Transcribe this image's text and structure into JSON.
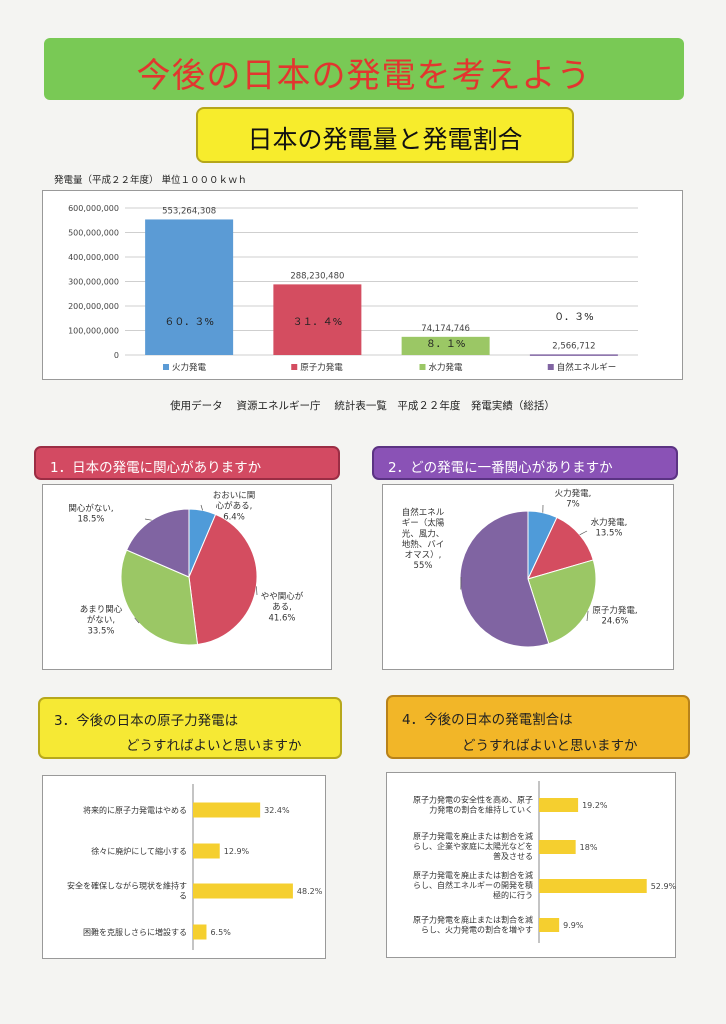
{
  "poster": {
    "title": "今後の日本の発電を考えよう",
    "subtitle": "日本の発電量と発電割合"
  },
  "bar_section": {
    "unit_label": "発電量（平成２２年度） 単位１０００ｋｗｈ",
    "source": "使用データ　 資源エネルギー庁　 統計表一覧　平成２２年度　発電実績（総括）"
  },
  "sections": {
    "s1": "1．日本の発電に関心がありますか",
    "s2": "2．どの発電に一番関心がありますか",
    "s3_line1": "3．今後の日本の原子力発電は",
    "s3_line2": "どうすればよいと思いますか",
    "s4_line1": "4．今後の日本の発電割合は",
    "s4_line2": "どうすればよいと思いますか"
  },
  "colors": {
    "thermal": "#5b9bd5",
    "nuclear": "#d44d60",
    "hydro": "#9bc765",
    "renewable": "#8064a2",
    "pie_blue": "#4f9bd9",
    "yellow_bar": "#f5cf2f"
  },
  "chart_data": [
    {
      "type": "bar",
      "title": "",
      "categories": [
        "火力発電",
        "原子力発電",
        "水力発電",
        "自然エネルギー"
      ],
      "values": [
        553264308,
        288230480,
        74174746,
        2566712
      ],
      "value_labels": [
        "553,264,308",
        "288,230,480",
        "74,174,746",
        "2,566,712"
      ],
      "percent_labels": [
        "６０．３%",
        "３１．４%",
        "８．１%",
        "０．３%"
      ],
      "ylim": [
        0,
        600000000
      ],
      "yticks": [
        "600,000,000",
        "500,000,000",
        "400,000,000",
        "300,000,000",
        "200,000,000",
        "100,000,000",
        "0"
      ],
      "legend": "bottom",
      "grid": true
    },
    {
      "type": "pie",
      "labels": [
        "おおいに関心がある",
        "やや関心がある",
        "あまり関心がない",
        "関心がない"
      ],
      "display_labels": [
        "おおいに関\n心がある,\n6.4%",
        "やや関心が\nある,\n41.6%",
        "あまり関心\nがない,\n33.5%",
        "関心がない,\n18.5%"
      ],
      "values": [
        6.4,
        41.6,
        33.5,
        18.5
      ]
    },
    {
      "type": "pie",
      "labels": [
        "火力発電",
        "水力発電",
        "原子力発電",
        "自然エネルギー（太陽光、風力、地熱、バイオマス）"
      ],
      "display_labels": [
        "火力発電,\n7%",
        "水力発電,\n13.5%",
        "原子力発電,\n24.6%",
        "自然エネル\nギー（太陽\n光、風力、\n地熱、バイ\nオマス）,\n55%"
      ],
      "values": [
        7,
        13.5,
        24.6,
        55
      ]
    },
    {
      "type": "bar",
      "orientation": "horizontal",
      "categories": [
        "将来的に原子力発電はやめる",
        "徐々に廃炉にして縮小する",
        "安全を確保しながら現状を維持する",
        "困難を克服しさらに増設する"
      ],
      "display_categories": [
        "将来的に原子力発電はやめる",
        "徐々に廃炉にして縮小する",
        "安全を確保しながら現状を維持す\nる",
        "困難を克服しさらに増設する"
      ],
      "values": [
        32.4,
        12.9,
        48.2,
        6.5
      ],
      "value_labels": [
        "32.4%",
        "12.9%",
        "48.2%",
        "6.5%"
      ]
    },
    {
      "type": "bar",
      "orientation": "horizontal",
      "categories": [
        "原子力発電の安全性を高め、原子力発電の割合を維持していく",
        "原子力発電を廃止または割合を減らし、企業や家庭に太陽光などを普及させる",
        "原子力発電を廃止または割合を減らし、自然エネルギーの開発を積極的に行う",
        "原子力発電を廃止または割合を減らし、火力発電の割合を増やす"
      ],
      "display_categories": [
        "原子力発電の安全性を高め、原子\n力発電の割合を維持していく",
        "原子力発電を廃止または割合を減\nらし、企業や家庭に太陽光などを\n普及させる",
        "原子力発電を廃止または割合を減\nらし、自然エネルギーの開発を積\n極的に行う",
        "原子力発電を廃止または割合を減\nらし、火力発電の割合を増やす"
      ],
      "values": [
        19.2,
        18,
        52.9,
        9.9
      ],
      "value_labels": [
        "19.2%",
        "18%",
        "52.9%",
        "9.9%"
      ]
    }
  ]
}
